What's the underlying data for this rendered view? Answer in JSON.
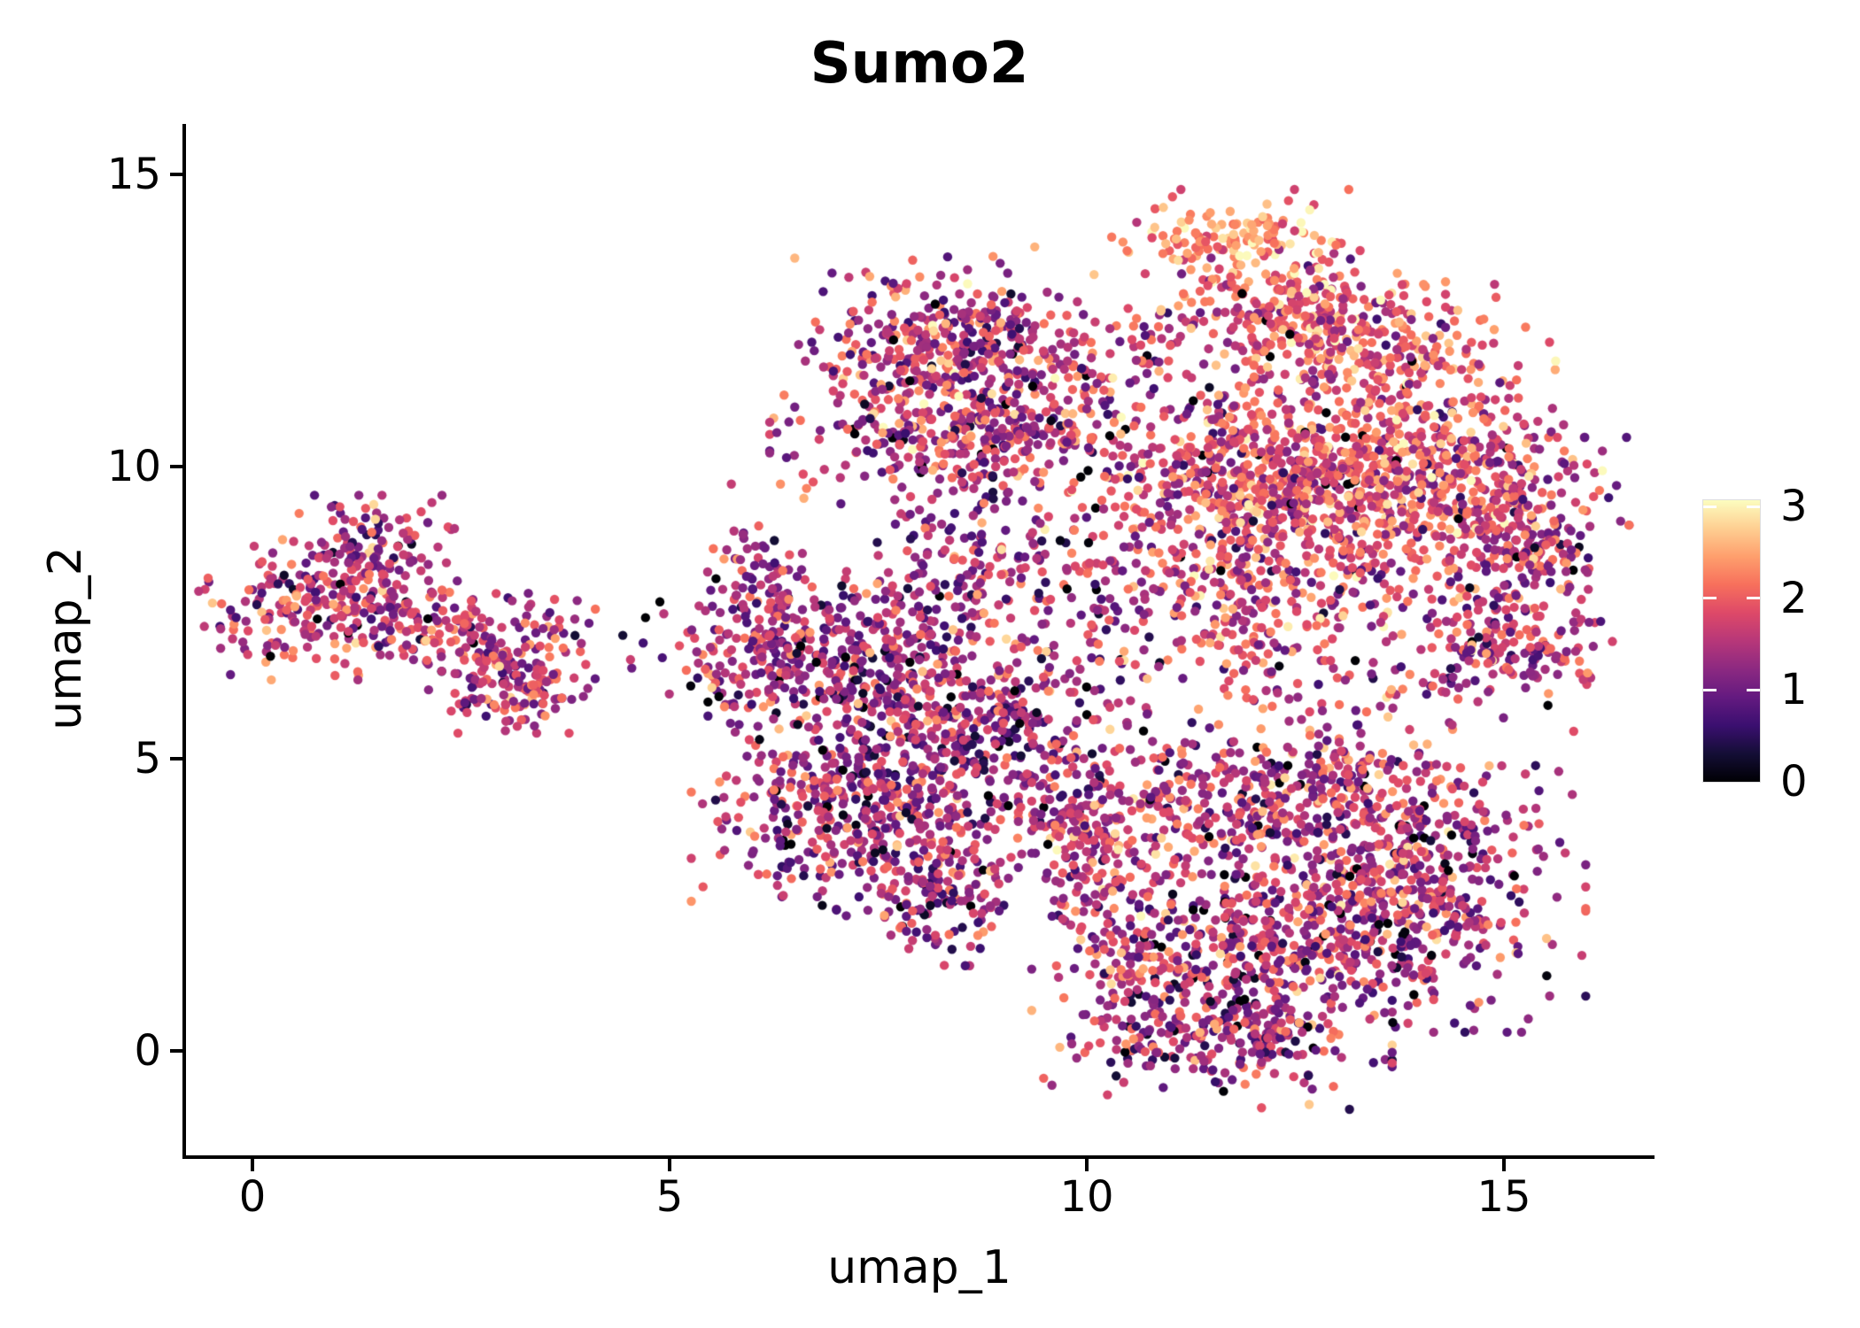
{
  "figure": {
    "background": "#ffffff",
    "text_color": "#000000"
  },
  "chart_data": {
    "type": "scatter",
    "title": "Sumo2",
    "xlabel": "umap_1",
    "ylabel": "umap_2",
    "x_ticks": [
      0,
      5,
      10,
      15
    ],
    "y_ticks": [
      0,
      5,
      10,
      15
    ],
    "xlim": [
      -0.8,
      16.75
    ],
    "ylim": [
      -1.8,
      15.9
    ],
    "grid": false,
    "legend_position": "right",
    "point_style": {
      "radius_px": 5.2,
      "shape": "circle"
    },
    "colorbar": {
      "ticks": [
        0,
        1,
        2,
        3
      ],
      "vmin": 0,
      "vmax": 3.07,
      "colormap": "magma",
      "stops": [
        [
          0.0,
          "#000004"
        ],
        [
          0.1,
          "#140e36"
        ],
        [
          0.2,
          "#3b0f70"
        ],
        [
          0.3,
          "#641a80"
        ],
        [
          0.4,
          "#8c2981"
        ],
        [
          0.5,
          "#b73779"
        ],
        [
          0.6,
          "#de4968"
        ],
        [
          0.7,
          "#f7705c"
        ],
        [
          0.8,
          "#fe9f6d"
        ],
        [
          0.9,
          "#fecf92"
        ],
        [
          1.0,
          "#fcfdbf"
        ]
      ]
    },
    "seed": 20,
    "clusters": [
      {
        "name": "left-main",
        "cx": 0.9,
        "cy": 7.55,
        "sx": 0.75,
        "sy": 0.5,
        "n": 230,
        "mean": 1.55,
        "sd": 0.55
      },
      {
        "name": "left-top-knob",
        "cx": 1.45,
        "cy": 8.55,
        "sx": 0.42,
        "sy": 0.4,
        "n": 110,
        "mean": 1.5,
        "sd": 0.55
      },
      {
        "name": "left-right-arm",
        "cx": 2.55,
        "cy": 7.2,
        "sx": 0.65,
        "sy": 0.35,
        "n": 120,
        "mean": 1.5,
        "sd": 0.55
      },
      {
        "name": "left-lower-knob",
        "cx": 3.1,
        "cy": 6.35,
        "sx": 0.42,
        "sy": 0.38,
        "n": 140,
        "mean": 1.5,
        "sd": 0.6
      },
      {
        "name": "left-outliers",
        "cx": 4.0,
        "cy": 6.9,
        "sx": 0.55,
        "sy": 0.35,
        "n": 12,
        "mean": 1.3,
        "sd": 0.5
      },
      {
        "name": "left-mid-bridge",
        "cx": 5.05,
        "cy": 7.1,
        "sx": 0.45,
        "sy": 0.55,
        "n": 14,
        "mean": 1.2,
        "sd": 0.5
      },
      {
        "name": "mid-left-arm",
        "cx": 6.05,
        "cy": 7.3,
        "sx": 0.42,
        "sy": 1.0,
        "n": 170,
        "mean": 1.35,
        "sd": 0.6
      },
      {
        "name": "mid-upper",
        "cx": 7.5,
        "cy": 6.4,
        "sx": 0.85,
        "sy": 0.85,
        "n": 430,
        "mean": 1.35,
        "sd": 0.6
      },
      {
        "name": "mid-lower",
        "cx": 7.3,
        "cy": 4.1,
        "sx": 0.85,
        "sy": 0.75,
        "n": 420,
        "mean": 1.3,
        "sd": 0.6
      },
      {
        "name": "mid-bottom-tail",
        "cx": 8.2,
        "cy": 2.7,
        "sx": 0.5,
        "sy": 0.55,
        "n": 140,
        "mean": 1.3,
        "sd": 0.6
      },
      {
        "name": "mid-right",
        "cx": 9.0,
        "cy": 5.4,
        "sx": 0.7,
        "sy": 0.8,
        "n": 220,
        "mean": 1.35,
        "sd": 0.6
      },
      {
        "name": "mid-top-spur",
        "cx": 8.6,
        "cy": 8.4,
        "sx": 0.5,
        "sy": 0.6,
        "n": 90,
        "mean": 1.3,
        "sd": 0.6
      },
      {
        "name": "topmid-upper",
        "cx": 8.3,
        "cy": 12.2,
        "sx": 0.75,
        "sy": 0.65,
        "n": 320,
        "mean": 1.5,
        "sd": 0.65
      },
      {
        "name": "topmid-lower",
        "cx": 8.6,
        "cy": 10.6,
        "sx": 1.0,
        "sy": 0.55,
        "n": 360,
        "mean": 1.55,
        "sd": 0.65
      },
      {
        "name": "topmid-right-bridge",
        "cx": 10.1,
        "cy": 11.4,
        "sx": 0.7,
        "sy": 0.8,
        "n": 150,
        "mean": 1.5,
        "sd": 0.7
      },
      {
        "name": "topright-tip",
        "cx": 11.7,
        "cy": 13.95,
        "sx": 0.6,
        "sy": 0.33,
        "n": 120,
        "mean": 2.35,
        "sd": 0.45,
        "zero_frac": 0.003
      },
      {
        "name": "topright-main",
        "cx": 12.5,
        "cy": 12.7,
        "sx": 0.75,
        "sy": 0.6,
        "n": 280,
        "mean": 1.95,
        "sd": 0.55
      },
      {
        "name": "topright-tail",
        "cx": 13.7,
        "cy": 11.8,
        "sx": 0.8,
        "sy": 0.55,
        "n": 200,
        "mean": 1.9,
        "sd": 0.55
      },
      {
        "name": "right-band-west",
        "cx": 12.1,
        "cy": 9.9,
        "sx": 0.95,
        "sy": 0.7,
        "n": 520,
        "mean": 1.85,
        "sd": 0.55
      },
      {
        "name": "right-band-east",
        "cx": 13.9,
        "cy": 9.7,
        "sx": 0.95,
        "sy": 0.75,
        "n": 560,
        "mean": 1.85,
        "sd": 0.55
      },
      {
        "name": "right-knob",
        "cx": 15.3,
        "cy": 8.7,
        "sx": 0.5,
        "sy": 0.75,
        "n": 200,
        "mean": 1.6,
        "sd": 0.6
      },
      {
        "name": "right-band-south",
        "cx": 12.5,
        "cy": 8.0,
        "sx": 1.0,
        "sy": 0.55,
        "n": 240,
        "mean": 1.7,
        "sd": 0.6
      },
      {
        "name": "right-lower-clump",
        "cx": 15.1,
        "cy": 6.9,
        "sx": 0.5,
        "sy": 0.5,
        "n": 150,
        "mean": 1.55,
        "sd": 0.6
      },
      {
        "name": "center-sparse",
        "cx": 10.0,
        "cy": 7.9,
        "sx": 1.1,
        "sy": 1.1,
        "n": 190,
        "mean": 1.4,
        "sd": 0.65
      },
      {
        "name": "small-clump",
        "cx": 11.85,
        "cy": 6.8,
        "sx": 0.3,
        "sy": 0.25,
        "n": 35,
        "mean": 1.8,
        "sd": 0.5
      },
      {
        "name": "east-south-bridge",
        "cx": 13.0,
        "cy": 6.0,
        "sx": 1.3,
        "sy": 0.6,
        "n": 110,
        "mean": 1.5,
        "sd": 0.6
      },
      {
        "name": "bottomright-top-band",
        "cx": 12.3,
        "cy": 4.3,
        "sx": 1.3,
        "sy": 0.55,
        "n": 420,
        "mean": 1.5,
        "sd": 0.6
      },
      {
        "name": "bottomright-east",
        "cx": 13.7,
        "cy": 2.6,
        "sx": 0.95,
        "sy": 0.95,
        "n": 580,
        "mean": 1.5,
        "sd": 0.6
      },
      {
        "name": "bottomright-mid",
        "cx": 11.9,
        "cy": 1.9,
        "sx": 0.75,
        "sy": 0.75,
        "n": 280,
        "mean": 1.4,
        "sd": 0.6
      },
      {
        "name": "bottomright-bottom",
        "cx": 11.5,
        "cy": 0.2,
        "sx": 0.9,
        "sy": 0.5,
        "n": 230,
        "mean": 1.4,
        "sd": 0.6
      },
      {
        "name": "bottomright-left-arc",
        "cx": 10.3,
        "cy": 2.9,
        "sx": 0.45,
        "sy": 0.95,
        "n": 170,
        "mean": 1.6,
        "sd": 0.6
      },
      {
        "name": "bottomright-left-tip",
        "cx": 9.9,
        "cy": 4.0,
        "sx": 0.35,
        "sy": 0.4,
        "n": 70,
        "mean": 1.6,
        "sd": 0.6
      },
      {
        "name": "bottomright-interior",
        "cx": 11.0,
        "cy": 1.3,
        "sx": 0.7,
        "sy": 0.7,
        "n": 60,
        "mean": 1.5,
        "sd": 0.7
      }
    ]
  }
}
